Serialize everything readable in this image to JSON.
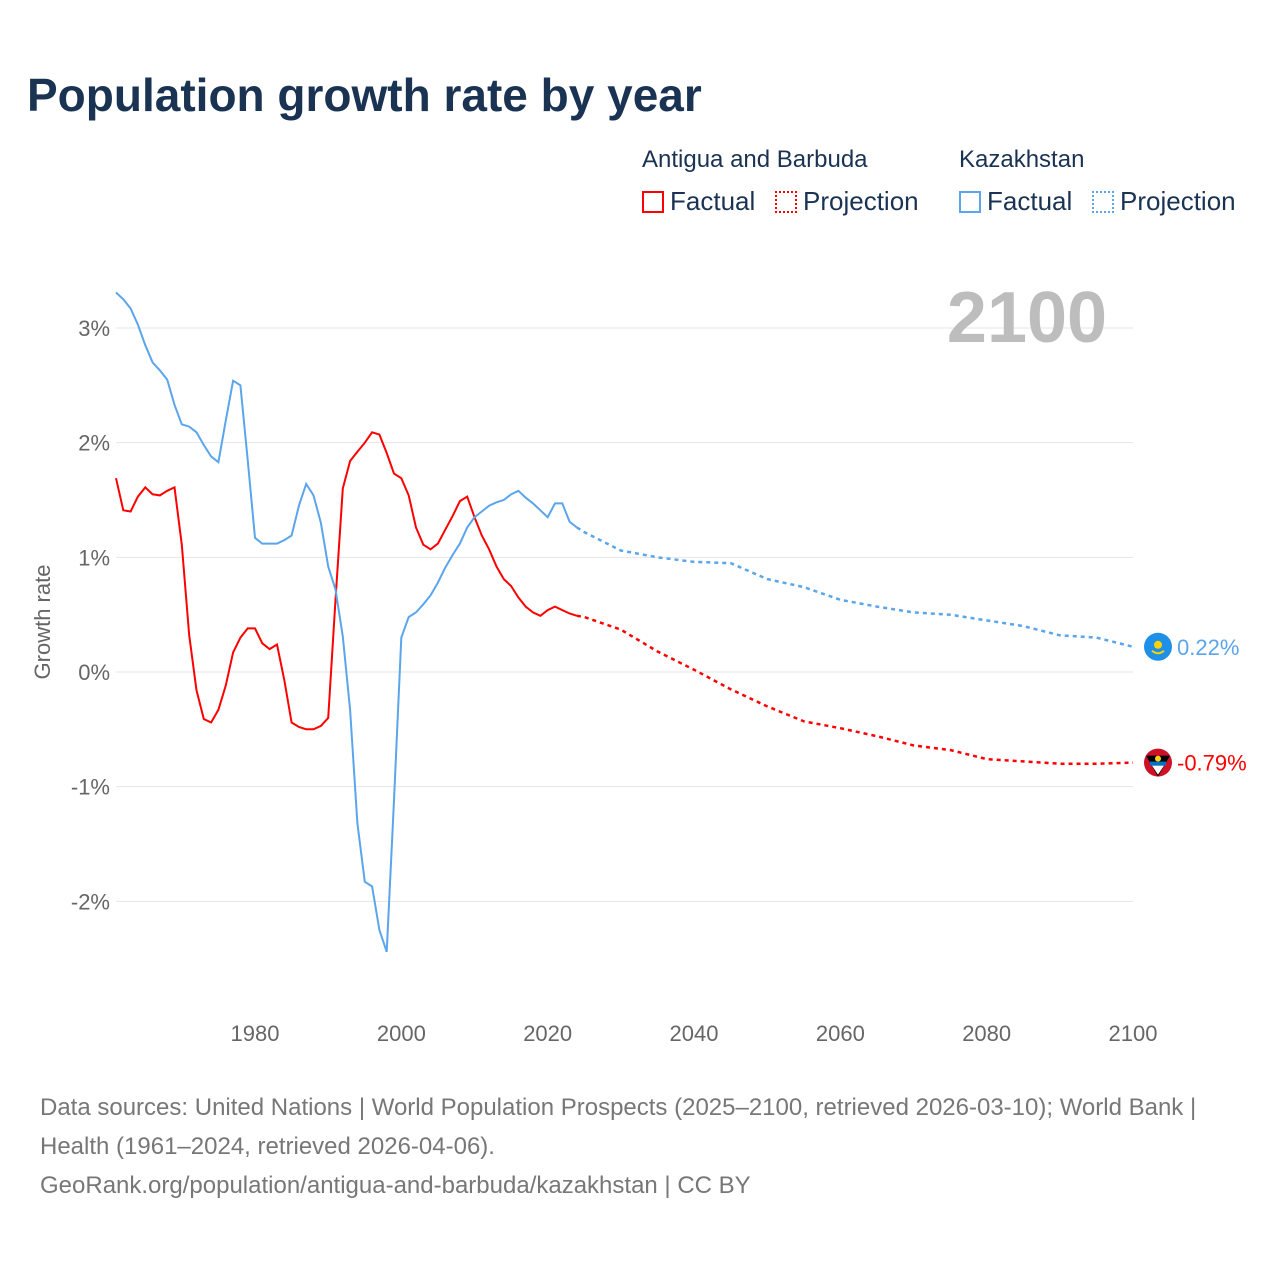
{
  "chart_data": {
    "type": "line",
    "title": "Population growth rate by year",
    "ylabel": "Growth rate",
    "xlabel": "",
    "xlim": [
      1961,
      2100
    ],
    "ylim": [
      -2.8,
      3.4
    ],
    "x_ticks": [
      1980,
      2000,
      2020,
      2040,
      2060,
      2080,
      2100
    ],
    "x_tick_labels": [
      "1980",
      "2000",
      "2020",
      "2040",
      "2060",
      "2080",
      "2100"
    ],
    "y_ticks": [
      3,
      2,
      1,
      0,
      -1,
      -2
    ],
    "y_tick_labels": [
      "3%",
      "2%",
      "1%",
      "0%",
      "-1%",
      "-2%"
    ],
    "grid": true,
    "current_year_label": "2100",
    "legend": {
      "groups": [
        {
          "name": "Antigua and Barbuda",
          "factual": "Factual",
          "projection": "Projection"
        },
        {
          "name": "Kazakhstan",
          "factual": "Factual",
          "projection": "Projection"
        }
      ],
      "placement": "top-right"
    },
    "series": [
      {
        "name": "Antigua and Barbuda",
        "color": "#ff0000",
        "end_label": "-0.79%",
        "factual": {
          "x": [
            1961,
            1962,
            1963,
            1964,
            1965,
            1966,
            1967,
            1968,
            1969,
            1970,
            1971,
            1972,
            1973,
            1974,
            1975,
            1976,
            1977,
            1978,
            1979,
            1980,
            1981,
            1982,
            1983,
            1984,
            1985,
            1986,
            1987,
            1988,
            1989,
            1990,
            1991,
            1992,
            1993,
            1994,
            1995,
            1996,
            1997,
            1998,
            1999,
            2000,
            2001,
            2002,
            2003,
            2004,
            2005,
            2006,
            2007,
            2008,
            2009,
            2010,
            2011,
            2012,
            2013,
            2014,
            2015,
            2016,
            2017,
            2018,
            2019,
            2020,
            2021,
            2022,
            2023,
            2024
          ],
          "y": [
            1.69,
            1.41,
            1.4,
            1.53,
            1.61,
            1.55,
            1.54,
            1.58,
            1.61,
            1.11,
            0.32,
            -0.16,
            -0.41,
            -0.44,
            -0.33,
            -0.12,
            0.17,
            0.3,
            0.38,
            0.38,
            0.25,
            0.2,
            0.24,
            -0.07,
            -0.44,
            -0.48,
            -0.5,
            -0.5,
            -0.47,
            -0.4,
            0.63,
            1.6,
            1.84,
            1.92,
            2.0,
            2.09,
            2.07,
            1.91,
            1.73,
            1.69,
            1.54,
            1.26,
            1.11,
            1.07,
            1.12,
            1.24,
            1.36,
            1.49,
            1.53,
            1.35,
            1.19,
            1.07,
            0.92,
            0.81,
            0.75,
            0.65,
            0.57,
            0.52,
            0.49,
            0.54,
            0.57,
            0.54,
            0.51,
            0.49
          ]
        },
        "projection": {
          "x": [
            2024,
            2025,
            2030,
            2035,
            2040,
            2045,
            2050,
            2055,
            2060,
            2065,
            2070,
            2075,
            2080,
            2085,
            2090,
            2095,
            2100
          ],
          "y": [
            0.49,
            0.48,
            0.37,
            0.18,
            0.02,
            -0.15,
            -0.3,
            -0.43,
            -0.49,
            -0.56,
            -0.64,
            -0.68,
            -0.76,
            -0.78,
            -0.8,
            -0.8,
            -0.79
          ]
        }
      },
      {
        "name": "Kazakhstan",
        "color": "#5aa5ec",
        "end_label": "0.22%",
        "factual": {
          "x": [
            1961,
            1962,
            1963,
            1964,
            1965,
            1966,
            1967,
            1968,
            1969,
            1970,
            1971,
            1972,
            1973,
            1974,
            1975,
            1976,
            1977,
            1978,
            1979,
            1980,
            1981,
            1982,
            1983,
            1984,
            1985,
            1986,
            1987,
            1988,
            1989,
            1990,
            1991,
            1992,
            1993,
            1994,
            1995,
            1996,
            1997,
            1998,
            1999,
            2000,
            2001,
            2002,
            2003,
            2004,
            2005,
            2006,
            2007,
            2008,
            2009,
            2010,
            2011,
            2012,
            2013,
            2014,
            2015,
            2016,
            2017,
            2018,
            2019,
            2020,
            2021,
            2022,
            2023,
            2024
          ],
          "y": [
            3.31,
            3.25,
            3.17,
            3.03,
            2.85,
            2.7,
            2.63,
            2.55,
            2.33,
            2.16,
            2.14,
            2.09,
            1.98,
            1.88,
            1.83,
            2.19,
            2.54,
            2.5,
            1.85,
            1.17,
            1.12,
            1.12,
            1.12,
            1.15,
            1.19,
            1.45,
            1.64,
            1.54,
            1.3,
            0.92,
            0.72,
            0.31,
            -0.33,
            -1.32,
            -1.83,
            -1.87,
            -2.25,
            -2.44,
            -1.12,
            0.3,
            0.48,
            0.52,
            0.59,
            0.67,
            0.78,
            0.91,
            1.02,
            1.12,
            1.26,
            1.35,
            1.4,
            1.45,
            1.48,
            1.5,
            1.55,
            1.58,
            1.52,
            1.47,
            1.41,
            1.35,
            1.47,
            1.47,
            1.31,
            1.26
          ]
        },
        "projection": {
          "x": [
            2024,
            2025,
            2030,
            2035,
            2040,
            2045,
            2050,
            2055,
            2060,
            2065,
            2070,
            2075,
            2080,
            2085,
            2090,
            2095,
            2100
          ],
          "y": [
            1.26,
            1.22,
            1.06,
            1.0,
            0.96,
            0.95,
            0.81,
            0.74,
            0.63,
            0.57,
            0.52,
            0.5,
            0.45,
            0.4,
            0.32,
            0.3,
            0.22
          ]
        }
      }
    ]
  },
  "footer": {
    "sources": "Data sources: United Nations | World Population Prospects (2025–2100, retrieved 2026-03-10); World Bank | Health (1961–2024, retrieved 2026-04-06).",
    "link": "GeoRank.org/population/antigua-and-barbuda/kazakhstan | CC BY"
  }
}
